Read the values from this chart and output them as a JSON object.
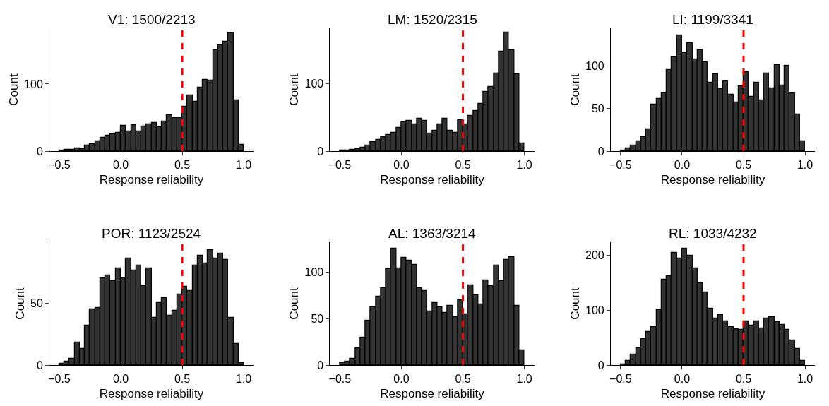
{
  "chart_data": [
    {
      "type": "histogram",
      "title": "V1: 1500/2213",
      "xlabel": "Response reliability",
      "ylabel": "Count",
      "color": "#333333",
      "bins": [
        -0.5,
        -0.4583,
        -0.4167,
        -0.375,
        -0.3333,
        -0.2917,
        -0.25,
        -0.2083,
        -0.1667,
        -0.125,
        -0.0833,
        -0.0417,
        0.0,
        0.0417,
        0.0833,
        0.125,
        0.1667,
        0.2083,
        0.25,
        0.2917,
        0.3333,
        0.375,
        0.4167,
        0.4583,
        0.5,
        0.5417,
        0.5833,
        0.625,
        0.6667,
        0.7083,
        0.75,
        0.7917,
        0.8333,
        0.875,
        0.9167,
        0.9583,
        1.0
      ],
      "values": [
        1,
        2,
        2,
        4,
        3,
        8,
        11,
        15,
        20,
        23,
        25,
        27,
        38,
        30,
        39,
        30,
        37,
        40,
        42,
        36,
        44,
        54,
        49,
        50,
        66,
        83,
        74,
        95,
        106,
        105,
        150,
        158,
        163,
        176,
        76,
        10
      ],
      "xlim": [
        -0.58,
        1.08
      ],
      "ylim": [
        0,
        183
      ],
      "xticks": [
        {
          "value": -0.5,
          "label": "−0.5"
        },
        {
          "value": 0,
          "label": "0.0"
        },
        {
          "value": 0.5,
          "label": "0.5"
        },
        {
          "value": 1.0,
          "label": "1.0"
        }
      ],
      "yticks": [
        0,
        100
      ],
      "grid": false,
      "ref_lines": [
        {
          "axis": "x",
          "value": 0.5,
          "color": "#ff0000",
          "line_style": "dashed"
        }
      ]
    },
    {
      "type": "histogram",
      "title": "LM: 1520/2315",
      "xlabel": "Response reliability",
      "ylabel": "Count",
      "color": "#333333",
      "bins": [
        -0.5,
        -0.4583,
        -0.4167,
        -0.375,
        -0.3333,
        -0.2917,
        -0.25,
        -0.2083,
        -0.1667,
        -0.125,
        -0.0833,
        -0.0417,
        0.0,
        0.0417,
        0.0833,
        0.125,
        0.1667,
        0.2083,
        0.25,
        0.2917,
        0.3333,
        0.375,
        0.4167,
        0.4583,
        0.5,
        0.5417,
        0.5833,
        0.625,
        0.6667,
        0.7083,
        0.75,
        0.7917,
        0.8333,
        0.875,
        0.9167,
        0.9583,
        1.0
      ],
      "values": [
        1,
        1,
        2,
        3,
        5,
        8,
        14,
        17,
        21,
        24,
        27,
        35,
        43,
        45,
        40,
        48,
        45,
        26,
        30,
        40,
        48,
        30,
        27,
        46,
        40,
        52,
        60,
        70,
        88,
        95,
        115,
        148,
        176,
        150,
        114,
        12
      ],
      "xlim": [
        -0.58,
        1.08
      ],
      "ylim": [
        0,
        182
      ],
      "xticks": [
        {
          "value": -0.5,
          "label": "−0.5"
        },
        {
          "value": 0,
          "label": "0.0"
        },
        {
          "value": 0.5,
          "label": "0.5"
        },
        {
          "value": 1.0,
          "label": "1.0"
        }
      ],
      "yticks": [
        0,
        100
      ],
      "grid": false,
      "ref_lines": [
        {
          "axis": "x",
          "value": 0.5,
          "color": "#ff0000",
          "line_style": "dashed"
        }
      ]
    },
    {
      "type": "histogram",
      "title": "LI: 1199/3341",
      "xlabel": "Response reliability",
      "ylabel": "Count",
      "color": "#333333",
      "bins": [
        -0.5,
        -0.4583,
        -0.4167,
        -0.375,
        -0.3333,
        -0.2917,
        -0.25,
        -0.2083,
        -0.1667,
        -0.125,
        -0.0833,
        -0.0417,
        0.0,
        0.0417,
        0.0833,
        0.125,
        0.1667,
        0.2083,
        0.25,
        0.2917,
        0.3333,
        0.375,
        0.4167,
        0.4583,
        0.5,
        0.5417,
        0.5833,
        0.625,
        0.6667,
        0.7083,
        0.75,
        0.7917,
        0.8333,
        0.875,
        0.9167,
        0.9583,
        1.0
      ],
      "values": [
        1,
        3,
        7,
        12,
        17,
        26,
        55,
        61,
        68,
        95,
        110,
        136,
        115,
        127,
        108,
        118,
        104,
        80,
        90,
        73,
        82,
        66,
        57,
        76,
        93,
        64,
        80,
        60,
        91,
        74,
        101,
        77,
        100,
        68,
        43,
        12
      ],
      "xlim": [
        -0.58,
        1.08
      ],
      "ylim": [
        0,
        144
      ],
      "xticks": [
        {
          "value": -0.5,
          "label": "−0.5"
        },
        {
          "value": 0,
          "label": "0.0"
        },
        {
          "value": 0.5,
          "label": "0.5"
        },
        {
          "value": 1.0,
          "label": "1.0"
        }
      ],
      "yticks": [
        0,
        50,
        100
      ],
      "grid": false,
      "ref_lines": [
        {
          "axis": "x",
          "value": 0.5,
          "color": "#ff0000",
          "line_style": "dashed"
        }
      ]
    },
    {
      "type": "histogram",
      "title": "POR: 1123/2524",
      "xlabel": "Response reliability",
      "ylabel": "Count",
      "color": "#333333",
      "bins": [
        -0.5,
        -0.4583,
        -0.4167,
        -0.375,
        -0.3333,
        -0.2917,
        -0.25,
        -0.2083,
        -0.1667,
        -0.125,
        -0.0833,
        -0.0417,
        0.0,
        0.0417,
        0.0833,
        0.125,
        0.1667,
        0.2083,
        0.25,
        0.2917,
        0.3333,
        0.375,
        0.4167,
        0.4583,
        0.5,
        0.5417,
        0.5833,
        0.625,
        0.6667,
        0.7083,
        0.75,
        0.7917,
        0.8333,
        0.875,
        0.9167,
        0.9583,
        1.0
      ],
      "values": [
        1,
        3,
        5,
        18,
        13,
        32,
        45,
        46,
        70,
        72,
        68,
        78,
        70,
        86,
        76,
        80,
        64,
        78,
        38,
        50,
        54,
        40,
        44,
        57,
        63,
        60,
        80,
        88,
        82,
        93,
        86,
        90,
        85,
        38,
        17,
        2
      ],
      "xlim": [
        -0.58,
        1.08
      ],
      "ylim": [
        0,
        99
      ],
      "xticks": [
        {
          "value": -0.5,
          "label": "−0.5"
        },
        {
          "value": 0,
          "label": "0.0"
        },
        {
          "value": 0.5,
          "label": "0.5"
        },
        {
          "value": 1.0,
          "label": "1.0"
        }
      ],
      "yticks": [
        0,
        50
      ],
      "grid": false,
      "ref_lines": [
        {
          "axis": "x",
          "value": 0.5,
          "color": "#ff0000",
          "line_style": "dashed"
        }
      ]
    },
    {
      "type": "histogram",
      "title": "AL: 1363/3214",
      "xlabel": "Response reliability",
      "ylabel": "Count",
      "color": "#333333",
      "bins": [
        -0.5,
        -0.4583,
        -0.4167,
        -0.375,
        -0.3333,
        -0.2917,
        -0.25,
        -0.2083,
        -0.1667,
        -0.125,
        -0.0833,
        -0.0417,
        0.0,
        0.0417,
        0.0833,
        0.125,
        0.1667,
        0.2083,
        0.25,
        0.2917,
        0.3333,
        0.375,
        0.4167,
        0.4583,
        0.5,
        0.5417,
        0.5833,
        0.625,
        0.6667,
        0.7083,
        0.75,
        0.7917,
        0.8333,
        0.875,
        0.9167,
        0.9583,
        1.0
      ],
      "values": [
        2,
        4,
        7,
        18,
        30,
        48,
        62,
        74,
        83,
        103,
        125,
        104,
        115,
        112,
        108,
        83,
        80,
        58,
        67,
        62,
        56,
        64,
        52,
        70,
        55,
        86,
        75,
        65,
        91,
        85,
        107,
        90,
        113,
        116,
        64,
        16
      ],
      "xlim": [
        -0.58,
        1.08
      ],
      "ylim": [
        0,
        132
      ],
      "xticks": [
        {
          "value": -0.5,
          "label": "−0.5"
        },
        {
          "value": 0,
          "label": "0.0"
        },
        {
          "value": 0.5,
          "label": "0.5"
        },
        {
          "value": 1.0,
          "label": "1.0"
        }
      ],
      "yticks": [
        0,
        50,
        100
      ],
      "grid": false,
      "ref_lines": [
        {
          "axis": "x",
          "value": 0.5,
          "color": "#ff0000",
          "line_style": "dashed"
        }
      ]
    },
    {
      "type": "histogram",
      "title": "RL: 1033/4232",
      "xlabel": "Response reliability",
      "ylabel": "Count",
      "color": "#333333",
      "bins": [
        -0.5,
        -0.4583,
        -0.4167,
        -0.375,
        -0.3333,
        -0.2917,
        -0.25,
        -0.2083,
        -0.1667,
        -0.125,
        -0.0833,
        -0.0417,
        0.0,
        0.0417,
        0.0833,
        0.125,
        0.1667,
        0.2083,
        0.25,
        0.2917,
        0.3333,
        0.375,
        0.4167,
        0.4583,
        0.5,
        0.5417,
        0.5833,
        0.625,
        0.6667,
        0.7083,
        0.75,
        0.7917,
        0.8333,
        0.875,
        0.9167,
        0.9583,
        1.0
      ],
      "values": [
        2,
        8,
        20,
        31,
        48,
        60,
        70,
        100,
        156,
        162,
        205,
        195,
        213,
        200,
        177,
        150,
        133,
        103,
        85,
        92,
        80,
        70,
        66,
        64,
        80,
        72,
        80,
        67,
        85,
        88,
        78,
        74,
        65,
        45,
        30,
        8
      ],
      "xlim": [
        -0.58,
        1.08
      ],
      "ylim": [
        0,
        224
      ],
      "xticks": [
        {
          "value": -0.5,
          "label": "−0.5"
        },
        {
          "value": 0,
          "label": "0.0"
        },
        {
          "value": 0.5,
          "label": "0.5"
        },
        {
          "value": 1.0,
          "label": "1.0"
        }
      ],
      "yticks": [
        0,
        100,
        200
      ],
      "grid": false,
      "ref_lines": [
        {
          "axis": "x",
          "value": 0.5,
          "color": "#ff0000",
          "line_style": "dashed"
        }
      ]
    }
  ]
}
